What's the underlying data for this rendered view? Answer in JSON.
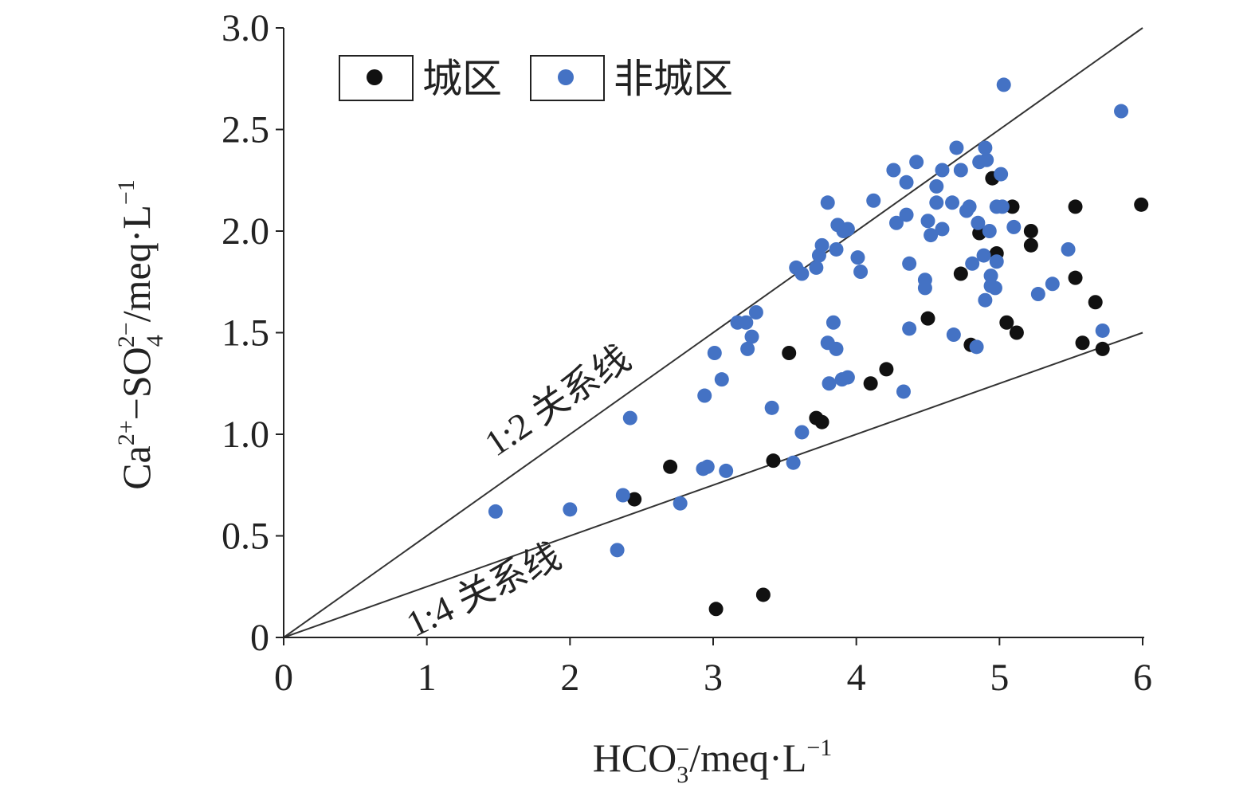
{
  "chart_data": {
    "type": "scatter",
    "title": "",
    "xlabel": "HCO3−/meq·L−1",
    "ylabel": "Ca2+−SO42−/meq·L−1",
    "xlim": [
      0,
      6
    ],
    "ylim": [
      0,
      3.0
    ],
    "x_ticks": [
      "0",
      "1",
      "2",
      "3",
      "4",
      "5",
      "6"
    ],
    "y_ticks": [
      "0",
      "0.5",
      "1.0",
      "1.5",
      "2.0",
      "2.5",
      "3.0"
    ],
    "reference_lines": [
      {
        "label": "1:2 关系线",
        "slope": 0.5
      },
      {
        "label": "1:4 关系线",
        "slope": 0.25
      }
    ],
    "legend_position": "top-left",
    "series": [
      {
        "name": "城区",
        "color": "#111111",
        "points": [
          [
            2.45,
            0.68
          ],
          [
            2.7,
            0.84
          ],
          [
            3.02,
            0.14
          ],
          [
            3.35,
            0.21
          ],
          [
            3.42,
            0.87
          ],
          [
            3.53,
            1.4
          ],
          [
            3.72,
            1.08
          ],
          [
            3.76,
            1.06
          ],
          [
            4.1,
            1.25
          ],
          [
            4.21,
            1.32
          ],
          [
            4.5,
            1.57
          ],
          [
            4.73,
            1.79
          ],
          [
            4.8,
            1.44
          ],
          [
            4.86,
            1.99
          ],
          [
            4.95,
            2.26
          ],
          [
            4.98,
            1.89
          ],
          [
            5.05,
            1.55
          ],
          [
            5.09,
            2.12
          ],
          [
            5.12,
            1.5
          ],
          [
            5.22,
            2.0
          ],
          [
            5.22,
            1.93
          ],
          [
            5.53,
            2.12
          ],
          [
            5.53,
            1.77
          ],
          [
            5.58,
            1.45
          ],
          [
            5.67,
            1.65
          ],
          [
            5.72,
            1.42
          ],
          [
            5.99,
            2.13
          ]
        ]
      },
      {
        "name": "非城区",
        "color": "#4472c4",
        "points": [
          [
            1.48,
            0.62
          ],
          [
            2.0,
            0.63
          ],
          [
            2.33,
            0.43
          ],
          [
            2.37,
            0.7
          ],
          [
            2.42,
            1.08
          ],
          [
            2.77,
            0.66
          ],
          [
            2.93,
            0.83
          ],
          [
            2.96,
            0.84
          ],
          [
            2.94,
            1.19
          ],
          [
            3.01,
            1.4
          ],
          [
            3.06,
            1.27
          ],
          [
            3.09,
            0.82
          ],
          [
            3.17,
            1.55
          ],
          [
            3.23,
            1.55
          ],
          [
            3.24,
            1.42
          ],
          [
            3.27,
            1.48
          ],
          [
            3.3,
            1.6
          ],
          [
            3.41,
            1.13
          ],
          [
            3.56,
            0.86
          ],
          [
            3.58,
            1.82
          ],
          [
            3.62,
            1.79
          ],
          [
            3.62,
            1.01
          ],
          [
            3.72,
            1.82
          ],
          [
            3.74,
            1.88
          ],
          [
            3.76,
            1.93
          ],
          [
            3.8,
            2.14
          ],
          [
            3.8,
            1.45
          ],
          [
            3.81,
            1.25
          ],
          [
            3.84,
            1.55
          ],
          [
            3.86,
            1.42
          ],
          [
            3.86,
            1.91
          ],
          [
            3.87,
            2.03
          ],
          [
            3.9,
            1.27
          ],
          [
            3.91,
            2.0
          ],
          [
            3.94,
            1.28
          ],
          [
            3.94,
            2.01
          ],
          [
            4.01,
            1.87
          ],
          [
            4.03,
            1.8
          ],
          [
            4.12,
            2.15
          ],
          [
            4.26,
            2.3
          ],
          [
            4.28,
            2.04
          ],
          [
            4.33,
            1.21
          ],
          [
            4.35,
            2.24
          ],
          [
            4.35,
            2.08
          ],
          [
            4.37,
            1.84
          ],
          [
            4.37,
            1.52
          ],
          [
            4.42,
            2.34
          ],
          [
            4.48,
            1.72
          ],
          [
            4.48,
            1.76
          ],
          [
            4.5,
            2.05
          ],
          [
            4.52,
            1.98
          ],
          [
            4.56,
            2.22
          ],
          [
            4.56,
            2.14
          ],
          [
            4.6,
            2.01
          ],
          [
            4.6,
            2.3
          ],
          [
            4.67,
            2.14
          ],
          [
            4.68,
            1.49
          ],
          [
            4.7,
            2.41
          ],
          [
            4.73,
            2.3
          ],
          [
            4.77,
            2.1
          ],
          [
            4.79,
            2.12
          ],
          [
            4.81,
            1.84
          ],
          [
            4.84,
            1.43
          ],
          [
            4.85,
            2.04
          ],
          [
            4.86,
            2.34
          ],
          [
            4.89,
            1.88
          ],
          [
            4.9,
            2.41
          ],
          [
            4.9,
            1.66
          ],
          [
            4.91,
            2.35
          ],
          [
            4.93,
            2.0
          ],
          [
            4.94,
            1.78
          ],
          [
            4.94,
            1.73
          ],
          [
            4.97,
            1.72
          ],
          [
            4.98,
            1.85
          ],
          [
            4.98,
            2.12
          ],
          [
            5.01,
            2.28
          ],
          [
            5.02,
            2.12
          ],
          [
            5.03,
            2.72
          ],
          [
            5.1,
            2.02
          ],
          [
            5.27,
            1.69
          ],
          [
            5.37,
            1.74
          ],
          [
            5.48,
            1.91
          ],
          [
            5.72,
            1.51
          ],
          [
            5.85,
            2.59
          ]
        ]
      }
    ]
  }
}
